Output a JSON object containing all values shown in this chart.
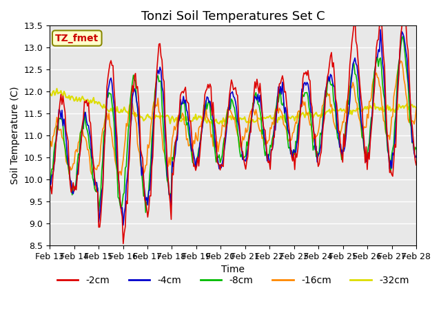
{
  "title": "Tonzi Soil Temperatures Set C",
  "xlabel": "Time",
  "ylabel": "Soil Temperature (C)",
  "annotation": "TZ_fmet",
  "ylim": [
    8.5,
    13.5
  ],
  "xlim": [
    0,
    360
  ],
  "xtick_labels": [
    "Feb 13",
    "Feb 14",
    "Feb 15",
    "Feb 16",
    "Feb 17",
    "Feb 18",
    "Feb 19",
    "Feb 20",
    "Feb 21",
    "Feb 22",
    "Feb 23",
    "Feb 24",
    "Feb 25",
    "Feb 26",
    "Feb 27",
    "Feb 28"
  ],
  "series_colors": [
    "#dd0000",
    "#0000cc",
    "#00bb00",
    "#ff8800",
    "#dddd00"
  ],
  "series_labels": [
    "-2cm",
    "-4cm",
    "-8cm",
    "-16cm",
    "-32cm"
  ],
  "background_color": "#e8e8e8",
  "grid_color": "#ffffff",
  "title_fontsize": 13,
  "label_fontsize": 10,
  "tick_fontsize": 9,
  "legend_fontsize": 10
}
